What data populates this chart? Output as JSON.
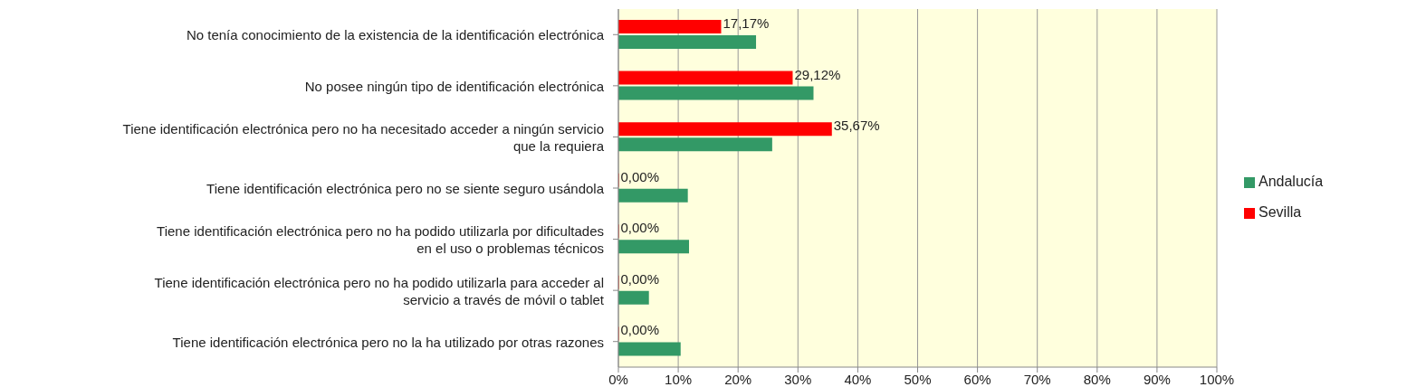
{
  "chart_data": {
    "type": "bar",
    "orientation": "horizontal",
    "categories": [
      "No tenía conocimiento de la existencia de la identificación electrónica",
      "No posee ningún tipo de identificación electrónica",
      "Tiene identificación electrónica pero no ha necesitado acceder a ningún servicio que la requiera",
      "Tiene identificación electrónica pero no se siente seguro usándola",
      "Tiene identificación electrónica pero no ha podido utilizarla por dificultades en el uso o problemas técnicos",
      "Tiene identificación electrónica pero no ha podido utilizarla para acceder al servicio a través de móvil o tablet",
      "Tiene identificación electrónica pero no la ha utilizado por otras razones"
    ],
    "series": [
      {
        "name": "Sevilla",
        "color": "#ff0000",
        "values": [
          17.17,
          29.12,
          35.67,
          0,
          0,
          0,
          0
        ],
        "value_labels": [
          "17,17%",
          "29,12%",
          "35,67%",
          "0,00%",
          "0,00%",
          "0,00%",
          "0,00%"
        ]
      },
      {
        "name": "Andalucía",
        "color": "#339966",
        "values": [
          23,
          32.6,
          25.7,
          11.6,
          11.8,
          5.1,
          10.4
        ]
      }
    ],
    "xlim": [
      0,
      100
    ],
    "xticks": [
      {
        "value": 0,
        "label": "0%"
      },
      {
        "value": 10,
        "label": "10%"
      },
      {
        "value": 20,
        "label": "20%"
      },
      {
        "value": 30,
        "label": "30%"
      },
      {
        "value": 40,
        "label": "40%"
      },
      {
        "value": 50,
        "label": "50%"
      },
      {
        "value": 60,
        "label": "60%"
      },
      {
        "value": 70,
        "label": "70%"
      },
      {
        "value": 80,
        "label": "80%"
      },
      {
        "value": 90,
        "label": "90%"
      },
      {
        "value": 100,
        "label": "100%"
      }
    ],
    "grid": "x",
    "legend": "right"
  }
}
